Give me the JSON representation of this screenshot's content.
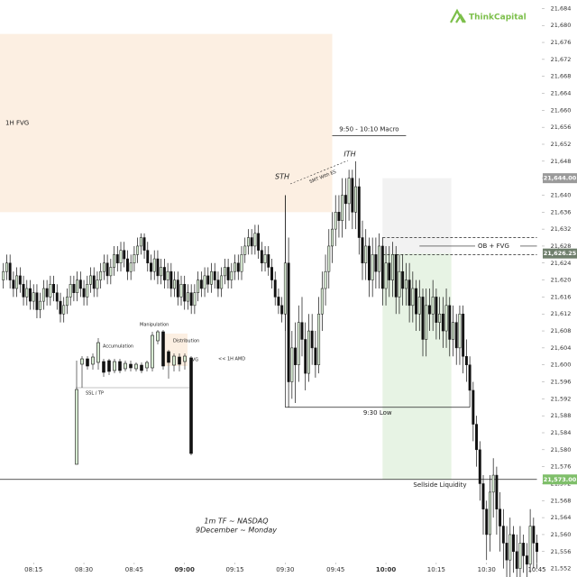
{
  "chart_data": {
    "type": "candlestick",
    "x": [
      486,
      487,
      488,
      489,
      490,
      491,
      492,
      493,
      494,
      495,
      496,
      497,
      498,
      499,
      500,
      501,
      502,
      503,
      504,
      505,
      506,
      507,
      508,
      509,
      510,
      511,
      512,
      513,
      514,
      515,
      516,
      517,
      518,
      519,
      520,
      521,
      522,
      523,
      524,
      525,
      526,
      527,
      528,
      529,
      530,
      531,
      532,
      533,
      534,
      535,
      536,
      537,
      538,
      539,
      540,
      541,
      542,
      543,
      544,
      545,
      546,
      547,
      548,
      549,
      550,
      551,
      552,
      553,
      554,
      555,
      556,
      557,
      558,
      559,
      560,
      561,
      562,
      563,
      564,
      565,
      566,
      567,
      568,
      569,
      570,
      571,
      572,
      573,
      574,
      575,
      576,
      577,
      578,
      579,
      580,
      581,
      582,
      583,
      584,
      585,
      586,
      587,
      588,
      589,
      590,
      591,
      592,
      593,
      594,
      595,
      596,
      597,
      598,
      599,
      600,
      601,
      602,
      603,
      604,
      605,
      606,
      607,
      608,
      609,
      610,
      611,
      612,
      613,
      614,
      615,
      616,
      617,
      618,
      619,
      620,
      621,
      622,
      623,
      624,
      625,
      626,
      627,
      628,
      629,
      630,
      631,
      632,
      633,
      634,
      635,
      636,
      637,
      638,
      639,
      640,
      641,
      642,
      643,
      644,
      645
    ],
    "open": [
      21620,
      21622,
      21624,
      21620,
      21618,
      21621,
      21619,
      21616,
      21618,
      21615,
      21617,
      21613,
      21615,
      21618,
      21616,
      21619,
      21617,
      21615,
      21612,
      21614,
      21616,
      21619,
      21617,
      21620,
      21618,
      21616,
      21619,
      21621,
      21618,
      21620,
      21622,
      21624,
      21621,
      21623,
      21626,
      21624,
      21627,
      21625,
      21622,
      21624,
      21626,
      21628,
      21630,
      21627,
      21624,
      21622,
      21625,
      21621,
      21623,
      21620,
      21622,
      21618,
      21620,
      21616,
      21619,
      21615,
      21617,
      21614,
      21617,
      21620,
      21618,
      21621,
      21619,
      21622,
      21620,
      21618,
      21621,
      21623,
      21620,
      21622,
      21624,
      21622,
      21626,
      21628,
      21630,
      21628,
      21631,
      21627,
      21624,
      21626,
      21623,
      21620,
      21616,
      21614,
      21612,
      21624,
      21596,
      21604,
      21600,
      21610,
      21606,
      21598,
      21608,
      21604,
      21600,
      21612,
      21618,
      21622,
      21628,
      21632,
      21636,
      21634,
      21640,
      21638,
      21644,
      21636,
      21642,
      21630,
      21624,
      21628,
      21620,
      21626,
      21622,
      21628,
      21618,
      21624,
      21620,
      21626,
      21616,
      21622,
      21618,
      21620,
      21614,
      21618,
      21612,
      21616,
      21606,
      21614,
      21612,
      21616,
      21610,
      21612,
      21608,
      21614,
      21606,
      21610,
      21604,
      21612,
      21602,
      21600,
      21594,
      21586,
      21580,
      21572,
      21566,
      21560,
      21570,
      21574,
      21566,
      21562,
      21558,
      21554,
      21560,
      21556,
      21552,
      21558,
      21555,
      21553,
      21562,
      21558
    ],
    "high": [
      21624,
      21626,
      21626,
      21622,
      21623,
      21623,
      21621,
      21620,
      21620,
      21619,
      21619,
      21617,
      21620,
      21620,
      21621,
      21621,
      21619,
      21617,
      21616,
      21618,
      21621,
      21621,
      21622,
      21622,
      21620,
      21621,
      21623,
      21623,
      21622,
      21624,
      21626,
      21626,
      21625,
      21628,
      21628,
      21629,
      21629,
      21627,
      21626,
      21628,
      21630,
      21631,
      21631,
      21629,
      21626,
      21627,
      21627,
      21625,
      21625,
      21624,
      21624,
      21622,
      21622,
      21621,
      21621,
      21619,
      21619,
      21619,
      21622,
      21622,
      21623,
      21623,
      21624,
      21624,
      21622,
      21623,
      21625,
      21625,
      21624,
      21626,
      21626,
      21628,
      21630,
      21632,
      21632,
      21633,
      21633,
      21629,
      21628,
      21628,
      21625,
      21622,
      21618,
      21616,
      21640,
      21630,
      21608,
      21610,
      21614,
      21616,
      21610,
      21612,
      21612,
      21608,
      21616,
      21622,
      21626,
      21632,
      21636,
      21640,
      21640,
      21644,
      21644,
      21646,
      21646,
      21648,
      21644,
      21634,
      21632,
      21630,
      21630,
      21630,
      21631,
      21630,
      21628,
      21628,
      21629,
      21628,
      21626,
      21626,
      21624,
      21624,
      21622,
      21620,
      21620,
      21618,
      21618,
      21618,
      21620,
      21618,
      21616,
      21616,
      21618,
      21616,
      21614,
      21612,
      21614,
      21614,
      21606,
      21602,
      21596,
      21588,
      21582,
      21574,
      21568,
      21574,
      21578,
      21576,
      21570,
      21566,
      21562,
      21564,
      21562,
      21560,
      21562,
      21560,
      21558,
      21566,
      21564,
      21560
    ],
    "low": [
      21618,
      21620,
      21618,
      21616,
      21616,
      21617,
      21614,
      21614,
      21613,
      21613,
      21611,
      21611,
      21613,
      21614,
      21614,
      21615,
      21613,
      21610,
      21610,
      21612,
      21614,
      21615,
      21615,
      21616,
      21614,
      21614,
      21617,
      21616,
      21616,
      21618,
      21620,
      21619,
      21619,
      21621,
      21622,
      21622,
      21623,
      21620,
      21620,
      21622,
      21624,
      21626,
      21625,
      21622,
      21620,
      21620,
      21619,
      21619,
      21618,
      21618,
      21616,
      21616,
      21614,
      21614,
      21613,
      21613,
      21612,
      21612,
      21615,
      21616,
      21616,
      21617,
      21617,
      21618,
      21616,
      21616,
      21619,
      21618,
      21618,
      21620,
      21620,
      21620,
      21624,
      21626,
      21626,
      21626,
      21625,
      21622,
      21622,
      21621,
      21618,
      21614,
      21612,
      21610,
      21608,
      21590,
      21592,
      21591,
      21596,
      21602,
      21594,
      21596,
      21600,
      21597,
      21598,
      21608,
      21614,
      21618,
      21624,
      21628,
      21630,
      21630,
      21632,
      21634,
      21632,
      21632,
      21626,
      21620,
      21620,
      21616,
      21616,
      21618,
      21618,
      21614,
      21614,
      21616,
      21616,
      21612,
      21612,
      21614,
      21614,
      21610,
      21610,
      21608,
      21608,
      21602,
      21602,
      21608,
      21608,
      21606,
      21606,
      21604,
      21604,
      21602,
      21602,
      21600,
      21600,
      21598,
      21596,
      21590,
      21582,
      21576,
      21568,
      21560,
      21554,
      21556,
      21564,
      21560,
      21556,
      21552,
      21550,
      21550,
      21551,
      21550,
      21550,
      21551,
      21550,
      21551,
      21552,
      21552
    ],
    "close": [
      21622,
      21624,
      21620,
      21618,
      21621,
      21619,
      21616,
      21618,
      21615,
      21617,
      21613,
      21615,
      21618,
      21616,
      21619,
      21617,
      21615,
      21612,
      21614,
      21616,
      21619,
      21617,
      21620,
      21618,
      21616,
      21619,
      21621,
      21618,
      21620,
      21622,
      21624,
      21621,
      21623,
      21626,
      21624,
      21627,
      21625,
      21622,
      21624,
      21626,
      21628,
      21630,
      21627,
      21624,
      21622,
      21625,
      21621,
      21623,
      21620,
      21622,
      21618,
      21620,
      21616,
      21619,
      21615,
      21617,
      21614,
      21617,
      21620,
      21618,
      21621,
      21619,
      21622,
      21620,
      21618,
      21621,
      21623,
      21620,
      21622,
      21624,
      21622,
      21626,
      21628,
      21630,
      21628,
      21631,
      21627,
      21624,
      21626,
      21623,
      21620,
      21616,
      21614,
      21612,
      21624,
      21596,
      21604,
      21600,
      21610,
      21606,
      21598,
      21608,
      21604,
      21600,
      21612,
      21618,
      21622,
      21628,
      21632,
      21636,
      21634,
      21640,
      21638,
      21644,
      21636,
      21642,
      21630,
      21624,
      21628,
      21620,
      21626,
      21622,
      21628,
      21618,
      21624,
      21620,
      21626,
      21616,
      21622,
      21618,
      21620,
      21614,
      21618,
      21612,
      21616,
      21606,
      21614,
      21612,
      21616,
      21610,
      21612,
      21608,
      21614,
      21606,
      21610,
      21604,
      21612,
      21602,
      21600,
      21594,
      21586,
      21580,
      21572,
      21566,
      21560,
      21570,
      21574,
      21566,
      21562,
      21558,
      21554,
      21560,
      21556,
      21552,
      21558,
      21555,
      21553,
      21562,
      21558,
      21556
    ],
    "up_color": "#d8ecd3",
    "down_color": "#111111",
    "xlim": [
      485,
      647
    ],
    "ylim": [
      21550,
      21686
    ],
    "xticks": [
      {
        "value": 495,
        "label": "08:15"
      },
      {
        "value": 510,
        "label": "08:30"
      },
      {
        "value": 525,
        "label": "08:45"
      },
      {
        "value": 540,
        "label": "09:00"
      },
      {
        "value": 555,
        "label": "09:15"
      },
      {
        "value": 570,
        "label": "09:30"
      },
      {
        "value": 585,
        "label": "09:45"
      },
      {
        "value": 600,
        "label": "10:00"
      },
      {
        "value": 615,
        "label": "10:15"
      },
      {
        "value": 630,
        "label": "10:30"
      },
      {
        "value": 645,
        "label": "10:45"
      }
    ],
    "yticks": [
      {
        "value": 21552,
        "label": "21,552"
      },
      {
        "value": 21556,
        "label": "21,556"
      },
      {
        "value": 21560,
        "label": "21,560"
      },
      {
        "value": 21564,
        "label": "21,564"
      },
      {
        "value": 21568,
        "label": "21,568"
      },
      {
        "value": 21572,
        "label": "21,572"
      },
      {
        "value": 21576,
        "label": "21,576"
      },
      {
        "value": 21580,
        "label": "21,580"
      },
      {
        "value": 21584,
        "label": "21,584"
      },
      {
        "value": 21588,
        "label": "21,588"
      },
      {
        "value": 21592,
        "label": "21,592"
      },
      {
        "value": 21596,
        "label": "21,596"
      },
      {
        "value": 21600,
        "label": "21,600"
      },
      {
        "value": 21604,
        "label": "21,604"
      },
      {
        "value": 21608,
        "label": "21,608"
      },
      {
        "value": 21612,
        "label": "21,612"
      },
      {
        "value": 21616,
        "label": "21,616"
      },
      {
        "value": 21620,
        "label": "21,620"
      },
      {
        "value": 21624,
        "label": "21,624"
      },
      {
        "value": 21628,
        "label": "21,628"
      },
      {
        "value": 21632,
        "label": "21,632"
      },
      {
        "value": 21636,
        "label": "21,636"
      },
      {
        "value": 21640,
        "label": "21,640"
      },
      {
        "value": 21644,
        "label": "21,644"
      },
      {
        "value": 21648,
        "label": "21,648"
      },
      {
        "value": 21652,
        "label": "21,652"
      },
      {
        "value": 21656,
        "label": "21,656"
      },
      {
        "value": 21660,
        "label": "21,660"
      },
      {
        "value": 21664,
        "label": "21,664"
      },
      {
        "value": 21668,
        "label": "21,668"
      },
      {
        "value": 21672,
        "label": "21,672"
      },
      {
        "value": 21676,
        "label": "21,676"
      },
      {
        "value": 21680,
        "label": "21,680"
      },
      {
        "value": 21684,
        "label": "21,684"
      }
    ],
    "zones": [
      {
        "label": "1H FVG",
        "x": [
          485,
          584
        ],
        "y": [
          21636,
          21678
        ],
        "color": "#fcefe2"
      },
      {
        "x": [
          599,
          619.5
        ],
        "y": [
          21626.25,
          21644
        ],
        "color": "#f2f2f2"
      },
      {
        "x": [
          599,
          619.5
        ],
        "y": [
          21573,
          21626.25
        ],
        "color": "#e7f3e4"
      }
    ],
    "levels": [
      {
        "value": 21630,
        "x": [
          599,
          645
        ],
        "dashed": true
      },
      {
        "value": 21628,
        "x": [
          610,
          645
        ],
        "label": "OB + FVG"
      },
      {
        "value": 21626,
        "x": [
          599,
          645
        ],
        "dashed": true
      },
      {
        "value": 21590,
        "x": [
          570,
          625
        ],
        "label": "9:30 Low"
      },
      {
        "value": 21573,
        "x": [
          485,
          645
        ],
        "label": "Sellside Liquidity"
      },
      {
        "value": 21654,
        "x": [
          584,
          606
        ],
        "label": "9:50 - 10:10 Macro"
      }
    ],
    "price_labels": [
      {
        "value": 21644,
        "label": "21,644.00",
        "color": "#9a9a9a"
      },
      {
        "value": 21626.25,
        "label": "21,626.25",
        "color": "#6f7f6c"
      },
      {
        "value": 21573,
        "label": "21,573.00",
        "color": "#7fbf6a"
      }
    ]
  },
  "annotations": {
    "sth": "STH",
    "ith": "ITH",
    "smt": "SMT With ES",
    "amd": "<< 1H AMD",
    "manipulation": "Manipulation",
    "accumulation": "Accumulation",
    "distribution": "Distribution",
    "fvg": "FVG",
    "ssl_tp": "SSL / TP",
    "footer_1": "1m TF ~ NASDAQ",
    "footer_2": "9December ~ Monday",
    "logo": "ThinkCapital"
  }
}
